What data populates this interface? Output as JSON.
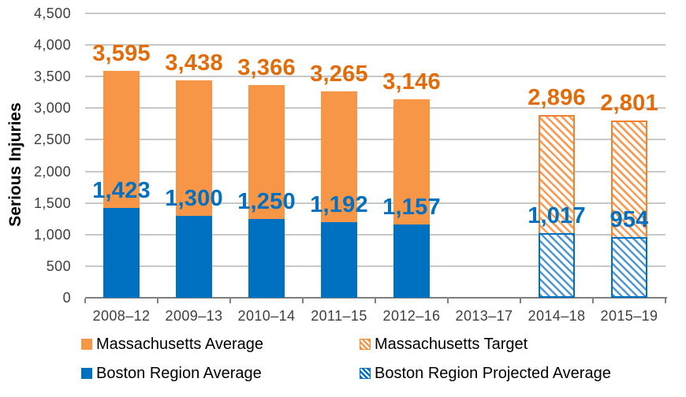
{
  "chart_data": {
    "type": "bar",
    "ylabel": "Serious Injuries",
    "y_axis": {
      "min": 0,
      "max": 4500,
      "step": 500
    },
    "grid": true,
    "legend_position": "bottom",
    "categories": [
      "2008–12",
      "2009–13",
      "2010–14",
      "2011–15",
      "2012–16",
      "2013–17",
      "2014–18",
      "2015–19"
    ],
    "series": [
      {
        "name": "Massachusetts Average",
        "style": "solid",
        "color": "#F79646",
        "label_color": "#E36C0A",
        "values": [
          3595,
          3438,
          3366,
          3265,
          3146,
          null,
          null,
          null
        ]
      },
      {
        "name": "Massachusetts Target",
        "style": "hatched",
        "color": "#F79646",
        "border_color": "#F08232",
        "label_color": "#E36C0A",
        "values": [
          null,
          null,
          null,
          null,
          null,
          null,
          2896,
          2801
        ]
      },
      {
        "name": "Boston Region Average",
        "style": "solid",
        "color": "#0070C0",
        "label_color": "#0070C0",
        "values": [
          1423,
          1300,
          1250,
          1192,
          1157,
          null,
          null,
          null
        ]
      },
      {
        "name": "Boston Region Projected Average",
        "style": "hatched",
        "color": "#0070C0",
        "border_color": "#0070C0",
        "label_color": "#0070C0",
        "values": [
          null,
          null,
          null,
          null,
          null,
          null,
          1017,
          954
        ]
      }
    ]
  }
}
